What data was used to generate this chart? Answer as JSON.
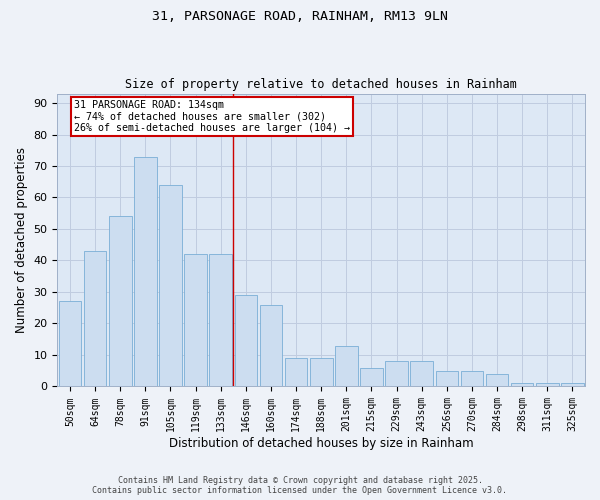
{
  "title1": "31, PARSONAGE ROAD, RAINHAM, RM13 9LN",
  "title2": "Size of property relative to detached houses in Rainham",
  "xlabel": "Distribution of detached houses by size in Rainham",
  "ylabel": "Number of detached properties",
  "categories": [
    "50sqm",
    "64sqm",
    "78sqm",
    "91sqm",
    "105sqm",
    "119sqm",
    "133sqm",
    "146sqm",
    "160sqm",
    "174sqm",
    "188sqm",
    "201sqm",
    "215sqm",
    "229sqm",
    "243sqm",
    "256sqm",
    "270sqm",
    "284sqm",
    "298sqm",
    "311sqm",
    "325sqm"
  ],
  "values": [
    27,
    43,
    54,
    73,
    64,
    42,
    42,
    29,
    26,
    9,
    9,
    13,
    6,
    8,
    8,
    5,
    5,
    4,
    1,
    1,
    1
  ],
  "bar_color": "#ccddf0",
  "bar_edge_color": "#7aaed6",
  "vline_color": "#cc0000",
  "annotation_text": "31 PARSONAGE ROAD: 134sqm\n← 74% of detached houses are smaller (302)\n26% of semi-detached houses are larger (104) →",
  "annotation_box_color": "#cc0000",
  "ylim": [
    0,
    93
  ],
  "yticks": [
    0,
    10,
    20,
    30,
    40,
    50,
    60,
    70,
    80,
    90
  ],
  "grid_color": "#c0cce0",
  "bg_color": "#dde8f5",
  "fig_bg_color": "#eef2f8",
  "footer1": "Contains HM Land Registry data © Crown copyright and database right 2025.",
  "footer2": "Contains public sector information licensed under the Open Government Licence v3.0."
}
